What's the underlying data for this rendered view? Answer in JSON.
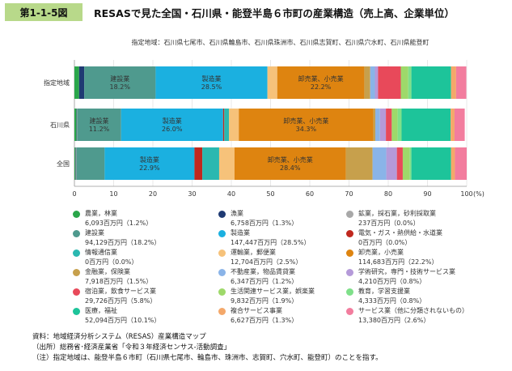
{
  "header": {
    "figure_label": "第1-1-5図",
    "title": "RESASで見た全国・石川県・能登半島６市町の産業構造（売上高、企業単位）"
  },
  "subtitle": "指定地域：石川県七尾市、石川県輪島市、石川県珠洲市、石川県志賀町、石川県穴水町、石川県能登町",
  "chart_data": {
    "type": "bar",
    "orientation": "horizontal-stacked-100",
    "categories": [
      "指定地域",
      "石川県",
      "全国"
    ],
    "xlim": [
      0,
      100
    ],
    "xticks": [
      "0",
      "10",
      "20",
      "30",
      "40",
      "50",
      "60",
      "70",
      "80",
      "90",
      "100"
    ],
    "xunit": "(%)",
    "grid": true,
    "series": [
      {
        "name": "農業，林業",
        "color": "#2aa64a",
        "values": [
          1.2,
          0.5,
          0.2
        ]
      },
      {
        "name": "漁業",
        "color": "#1f3a73",
        "values": [
          1.3,
          0.1,
          0.1
        ]
      },
      {
        "name": "鉱業，採石業，砂利採取業",
        "color": "#a8a8a8",
        "values": [
          0.0,
          0.1,
          0.2
        ]
      },
      {
        "name": "建設業",
        "color": "#4f9a8e",
        "values": [
          18.2,
          11.2,
          7.2
        ]
      },
      {
        "name": "製造業",
        "color": "#1bb0e0",
        "values": [
          28.5,
          26.0,
          22.9
        ]
      },
      {
        "name": "電気・ガス・熱供給・水道業",
        "color": "#c0281e",
        "values": [
          0.0,
          0.3,
          2.0
        ]
      },
      {
        "name": "情報通信業",
        "color": "#2ab8b0",
        "values": [
          0.0,
          1.2,
          4.3
        ]
      },
      {
        "name": "運輸業，郵便業",
        "color": "#f6c27a",
        "values": [
          2.5,
          2.5,
          3.9
        ]
      },
      {
        "name": "卸売業，小売業",
        "color": "#de8410",
        "values": [
          22.2,
          34.3,
          28.4
        ]
      },
      {
        "name": "金融業，保険業",
        "color": "#c7a04c",
        "values": [
          1.5,
          0.5,
          6.8
        ]
      },
      {
        "name": "不動産業，物品賃貸業",
        "color": "#8ab4e8",
        "values": [
          1.2,
          1.2,
          3.5
        ]
      },
      {
        "name": "学術研究，専門・技術サービス業",
        "color": "#b59ad9",
        "values": [
          0.8,
          1.5,
          2.7
        ]
      },
      {
        "name": "宿泊業，飲食サービス業",
        "color": "#e8495a",
        "values": [
          5.8,
          1.5,
          1.5
        ]
      },
      {
        "name": "生活関連サービス業，娯楽業",
        "color": "#9ed96a",
        "values": [
          1.9,
          1.5,
          1.8
        ]
      },
      {
        "name": "教育，学習支援業",
        "color": "#7fe08a",
        "values": [
          0.8,
          1.0,
          0.4
        ]
      },
      {
        "name": "医療，福祉",
        "color": "#1dc49a",
        "values": [
          10.1,
          12.5,
          10.1
        ]
      },
      {
        "name": "複合サービス事業",
        "color": "#f4a86a",
        "values": [
          1.3,
          1.0,
          1.0
        ]
      },
      {
        "name": "サービス業（他に分類されないもの）",
        "color": "#f27d9e",
        "values": [
          2.6,
          2.6,
          3.0
        ]
      }
    ],
    "data_labels": [
      {
        "bar": 0,
        "segment": "建設業",
        "text": [
          "建設業",
          "18.2%"
        ]
      },
      {
        "bar": 0,
        "segment": "製造業",
        "text": [
          "製造業",
          "28.5%"
        ]
      },
      {
        "bar": 0,
        "segment": "卸売業，小売業",
        "text": [
          "卸売業、小売業",
          "22.2%"
        ]
      },
      {
        "bar": 1,
        "segment": "建設業",
        "text": [
          "建設業",
          "11.2%"
        ]
      },
      {
        "bar": 1,
        "segment": "製造業",
        "text": [
          "製造業",
          "26.0%"
        ]
      },
      {
        "bar": 1,
        "segment": "卸売業，小売業",
        "text": [
          "卸売業、小売業",
          "34.3%"
        ]
      },
      {
        "bar": 2,
        "segment": "製造業",
        "text": [
          "製造業",
          "22.9%"
        ]
      },
      {
        "bar": 2,
        "segment": "卸売業，小売業",
        "text": [
          "卸売業、小売業",
          "28.4%"
        ]
      }
    ]
  },
  "legend": [
    {
      "name": "農業，林業",
      "value": "6,093百万円（1.2%）",
      "color": "#2aa64a"
    },
    {
      "name": "漁業",
      "value": "6,758百万円（1.3%）",
      "color": "#1f3a73"
    },
    {
      "name": "鉱業，採石業，砂利採取業",
      "value": "237百万円（0.0%）",
      "color": "#a8a8a8"
    },
    {
      "name": "建設業",
      "value": "94,129百万円（18.2%）",
      "color": "#4f9a8e"
    },
    {
      "name": "製造業",
      "value": "147,447百万円（28.5%）",
      "color": "#1bb0e0"
    },
    {
      "name": "電気・ガス・熱供給・水道業",
      "value": "0百万円（0.0%）",
      "color": "#c0281e"
    },
    {
      "name": "情報通信業",
      "value": "0百万円（0.0%）",
      "color": "#2ab8b0"
    },
    {
      "name": "運輸業，郵便業",
      "value": "12,704百万円（2.5%）",
      "color": "#f6c27a"
    },
    {
      "name": "卸売業，小売業",
      "value": "114,683百万円（22.2%）",
      "color": "#de8410"
    },
    {
      "name": "金融業，保険業",
      "value": "7,918百万円（1.5%）",
      "color": "#c7a04c"
    },
    {
      "name": "不動産業，物品賃貸業",
      "value": "6,347百万円（1.2%）",
      "color": "#8ab4e8"
    },
    {
      "name": "学術研究，専門・技術サービス業",
      "value": "4,210百万円（0.8%）",
      "color": "#b59ad9"
    },
    {
      "name": "宿泊業，飲食サービス業",
      "value": "29,726百万円（5.8%）",
      "color": "#e8495a"
    },
    {
      "name": "生活関連サービス業，娯楽業",
      "value": "9,832百万円（1.9%）",
      "color": "#9ed96a"
    },
    {
      "name": "教育，学習支援業",
      "value": "4,333百万円（0.8%）",
      "color": "#7fe08a"
    },
    {
      "name": "医療，福祉",
      "value": "52,094百万円（10.1%）",
      "color": "#1dc49a"
    },
    {
      "name": "複合サービス事業",
      "value": "6,627百万円（1.3%）",
      "color": "#f4a86a"
    },
    {
      "name": "サービス業（他に分類されないもの）",
      "value": "13,380百万円（2.6%）",
      "color": "#f27d9e"
    }
  ],
  "notes": {
    "source": "資料：地域経済分析システム（RESAS）産業構造マップ",
    "origin": "（出所）総務省･経済産業省「令和３年経済センサス-活動調査」",
    "note": "（注）指定地域は、能登半島６市町（石川県七尾市、輪島市、珠洲市、志賀町、穴水町、能登町）のことを指す。"
  }
}
